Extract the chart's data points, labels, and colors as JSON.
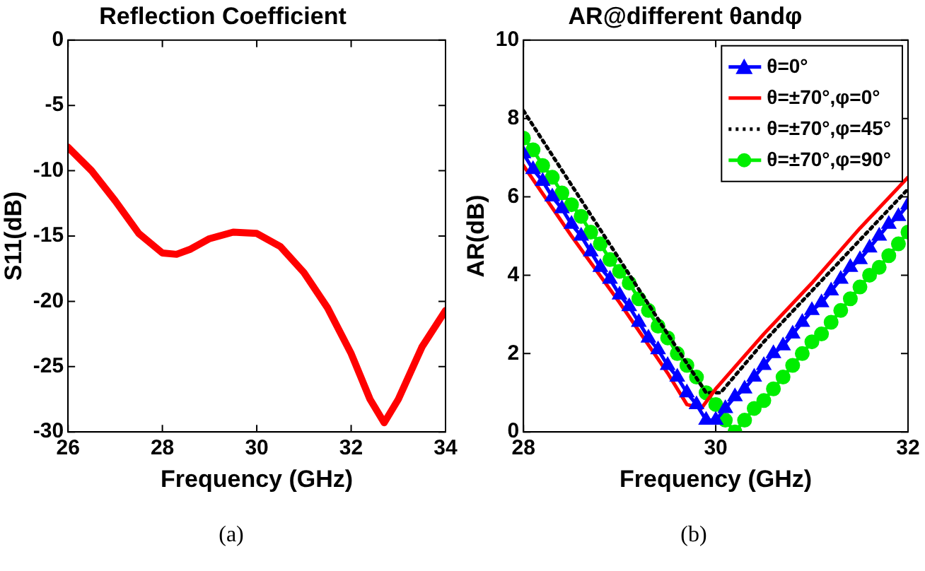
{
  "chart_data": [
    {
      "type": "line",
      "title": "Reflection Coefficient",
      "xlabel": "Frequency (GHz)",
      "ylabel": "S11(dB)",
      "annotations": [
        "(a)"
      ],
      "xlim": [
        26,
        34
      ],
      "xticks": [
        26,
        28,
        30,
        32,
        34
      ],
      "ylim": [
        -30,
        0
      ],
      "yticks": [
        -30,
        -25,
        -20,
        -15,
        -10,
        -5,
        0
      ],
      "grid": false,
      "legend": false,
      "x": [
        26,
        26.5,
        27,
        27.5,
        28,
        28.3,
        28.6,
        29,
        29.5,
        30,
        30.5,
        31,
        31.5,
        32,
        32.4,
        32.7,
        33,
        33.5,
        34
      ],
      "series": [
        {
          "color": "#ff0000",
          "values": [
            -8.2,
            -10,
            -12.3,
            -14.8,
            -16.3,
            -16.4,
            -16,
            -15.2,
            -14.7,
            -14.8,
            -15.8,
            -17.8,
            -20.5,
            -24,
            -27.5,
            -29.3,
            -27.5,
            -23.5,
            -20.7
          ],
          "marker": "none",
          "line_style": "solid"
        }
      ]
    },
    {
      "type": "line",
      "title": "AR@different θandφ",
      "xlabel": "Frequency (GHz)",
      "ylabel": "AR(dB)",
      "annotations": [
        "(b)"
      ],
      "xlim": [
        28,
        32
      ],
      "xticks": [
        28,
        30,
        32
      ],
      "ylim": [
        0,
        10
      ],
      "yticks": [
        0,
        2,
        4,
        6,
        8,
        10
      ],
      "grid": false,
      "legend": "top right",
      "series": [
        {
          "name": "θ=0°",
          "color": "#0000ff",
          "marker": "triangle",
          "line_style": "solid",
          "x": [
            28,
            28.1,
            28.2,
            28.3,
            28.4,
            28.5,
            28.6,
            28.7,
            28.8,
            28.9,
            29,
            29.1,
            29.2,
            29.3,
            29.4,
            29.5,
            29.6,
            29.7,
            29.8,
            29.9,
            30,
            30.1,
            30.2,
            30.3,
            30.4,
            30.5,
            30.6,
            30.7,
            30.8,
            30.9,
            31,
            31.1,
            31.2,
            31.3,
            31.4,
            31.5,
            31.6,
            31.7,
            31.8,
            31.9,
            32
          ],
          "values": [
            7.1,
            6.7,
            6.4,
            6,
            5.7,
            5.3,
            5,
            4.6,
            4.2,
            3.9,
            3.5,
            3.2,
            2.8,
            2.4,
            2.1,
            1.7,
            1.4,
            1,
            0.7,
            0.3,
            0.3,
            0.6,
            0.9,
            1.1,
            1.4,
            1.7,
            2,
            2.2,
            2.5,
            2.8,
            3.1,
            3.3,
            3.6,
            3.9,
            4.2,
            4.4,
            4.7,
            5,
            5.3,
            5.5,
            5.8
          ]
        },
        {
          "name": "θ=±70°,φ=0°",
          "color": "#ff0000",
          "marker": "none",
          "line_style": "solid",
          "x": [
            28,
            28.5,
            29,
            29.5,
            29.7,
            29.85,
            30,
            30.5,
            31,
            31.5,
            32
          ],
          "values": [
            6.8,
            5,
            3.3,
            1.5,
            0.7,
            0.6,
            1.1,
            2.5,
            3.8,
            5.2,
            6.5
          ]
        },
        {
          "name": "θ=±70°,φ=45°",
          "color": "#000000",
          "marker": "none",
          "line_style": "dotted",
          "x": [
            28,
            28.5,
            29,
            29.5,
            29.9,
            30.05,
            30.5,
            31,
            31.5,
            32
          ],
          "values": [
            8.2,
            6.3,
            4.4,
            2.5,
            1,
            1,
            2.3,
            3.6,
            4.9,
            6.2
          ]
        },
        {
          "name": "θ=±70°,φ=90°",
          "color": "#00ee00",
          "marker": "circle",
          "line_style": "solid",
          "x": [
            28,
            28.1,
            28.2,
            28.3,
            28.4,
            28.5,
            28.6,
            28.7,
            28.8,
            28.9,
            29,
            29.1,
            29.2,
            29.3,
            29.4,
            29.5,
            29.6,
            29.7,
            29.8,
            29.9,
            30,
            30.1,
            30.2,
            30.3,
            30.4,
            30.5,
            30.6,
            30.7,
            30.8,
            30.9,
            31,
            31.1,
            31.2,
            31.3,
            31.4,
            31.5,
            31.6,
            31.7,
            31.8,
            31.9,
            32
          ],
          "values": [
            7.5,
            7.2,
            6.8,
            6.5,
            6.1,
            5.8,
            5.5,
            5.1,
            4.8,
            4.4,
            4.1,
            3.8,
            3.4,
            3.1,
            2.7,
            2.4,
            2,
            1.7,
            1.4,
            1,
            0.7,
            0.3,
            0,
            0.3,
            0.6,
            0.8,
            1.1,
            1.4,
            1.7,
            2,
            2.3,
            2.5,
            2.8,
            3.1,
            3.4,
            3.7,
            4,
            4.2,
            4.5,
            4.8,
            5.1
          ]
        }
      ]
    }
  ]
}
